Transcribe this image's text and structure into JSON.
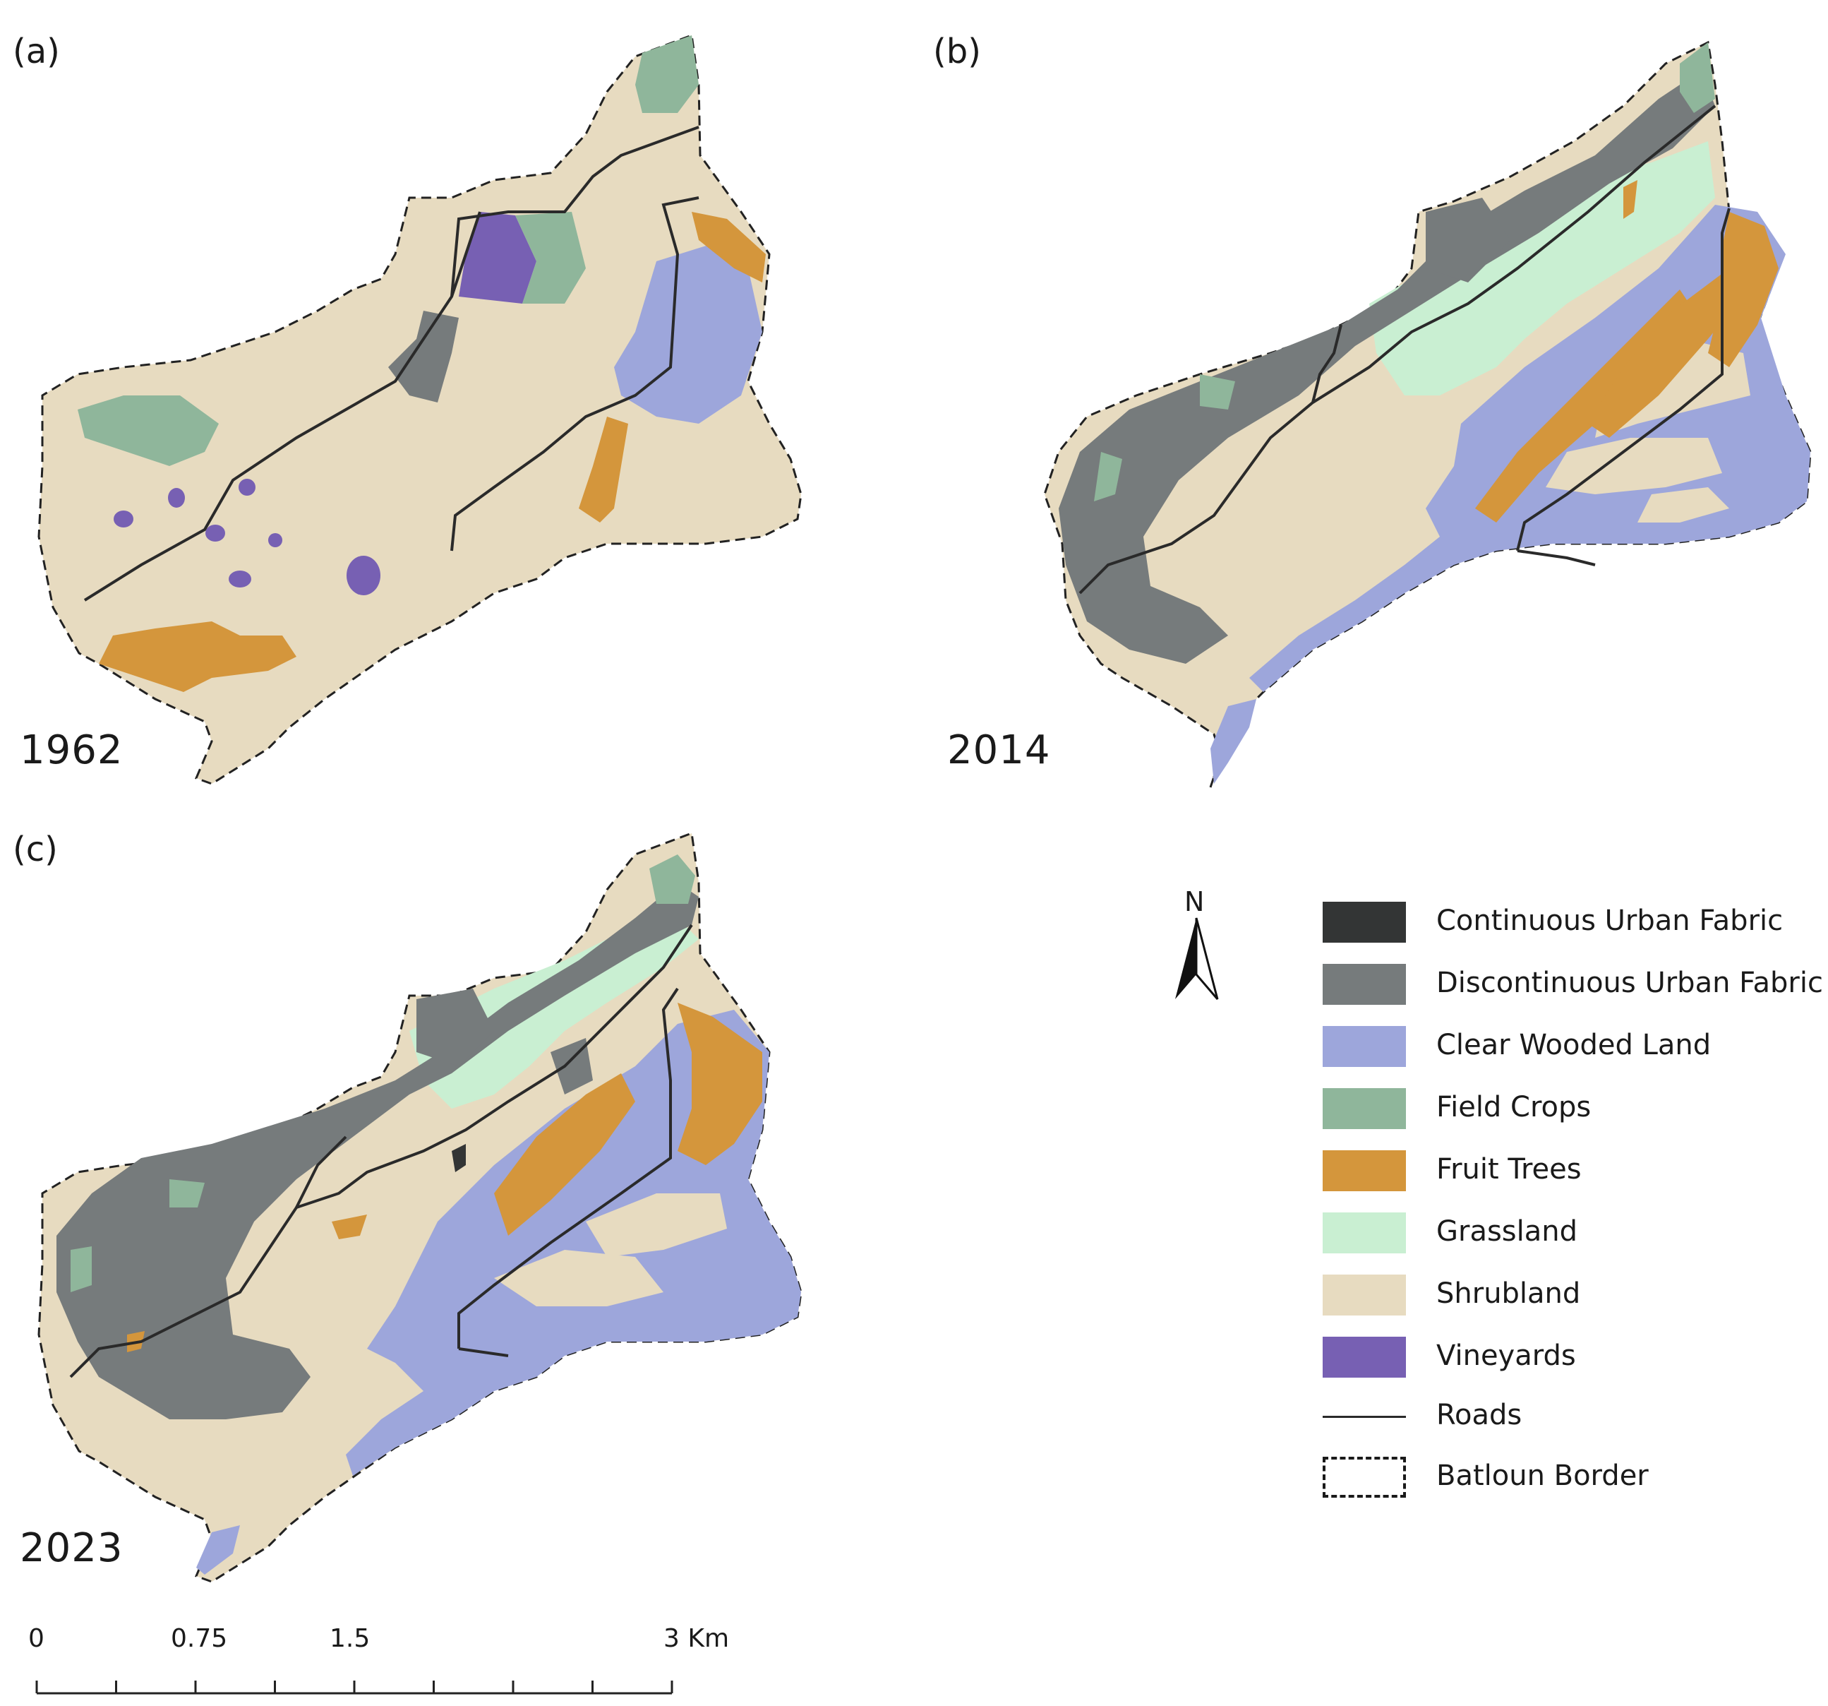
{
  "panels": [
    {
      "letter": "(a)",
      "year": "1962"
    },
    {
      "letter": "(b)",
      "year": "2014"
    },
    {
      "letter": "(c)",
      "year": "2023"
    }
  ],
  "legend": {
    "items": [
      {
        "label": "Continuous Urban Fabric",
        "color": "#333535",
        "kind": "fill"
      },
      {
        "label": "Discontinuous Urban Fabric",
        "color": "#767b7c",
        "kind": "fill"
      },
      {
        "label": "Clear Wooded Land",
        "color": "#9da6db",
        "kind": "fill"
      },
      {
        "label": "Field Crops",
        "color": "#8fb69b",
        "kind": "fill"
      },
      {
        "label": "Fruit Trees",
        "color": "#d4963c",
        "kind": "fill"
      },
      {
        "label": "Grassland",
        "color": "#c9efd2",
        "kind": "fill"
      },
      {
        "label": "Shrubland",
        "color": "#e7dbc0",
        "kind": "fill"
      },
      {
        "label": "Vineyards",
        "color": "#7760b3",
        "kind": "fill"
      },
      {
        "label": "Roads",
        "color": "#2a2a2a",
        "kind": "line"
      },
      {
        "label": "Batloun Border",
        "color": "#1a1a1a",
        "kind": "dashed"
      }
    ]
  },
  "north_arrow": {
    "label": "N",
    "icon": "north-arrow-icon"
  },
  "scale_bar": {
    "labels": [
      "0",
      "0.75",
      "1.5",
      "3 Km"
    ],
    "values": [
      0,
      0.75,
      1.5,
      3
    ],
    "unit": "Km",
    "max": 3,
    "divisions": 8
  }
}
